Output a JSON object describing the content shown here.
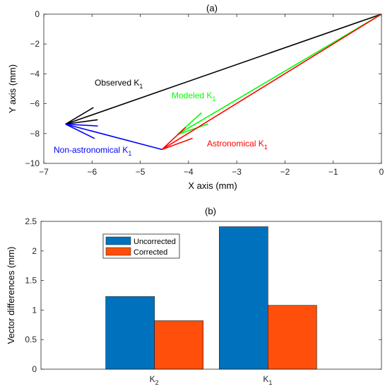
{
  "colors": {
    "black": "#000000",
    "blue": "#0000ff",
    "green": "#00ff00",
    "red": "#ff0000",
    "uncorrected": "#0072bd",
    "corrected": "#ff4f0a"
  },
  "chart_data": [
    {
      "type": "line",
      "title": "(a)",
      "xlabel": "X axis (mm)",
      "ylabel": "Y axis (mm)",
      "xlim": [
        -7,
        0
      ],
      "ylim": [
        -10,
        0
      ],
      "xticks": [
        -7,
        -6,
        -5,
        -4,
        -3,
        -2,
        -1,
        0
      ],
      "xtick_labels": [
        "−7",
        "−6",
        "−5",
        "−4",
        "−3",
        "−2",
        "−1",
        "0"
      ],
      "yticks": [
        0,
        -2,
        -4,
        -6,
        -8,
        -10
      ],
      "ytick_labels": [
        "0",
        "−2",
        "−4",
        "−6",
        "−8",
        "−10"
      ],
      "grid": false,
      "vectors": [
        {
          "base": "Observed K",
          "sub": "1",
          "color": "#000000",
          "from": [
            0,
            0
          ],
          "to": [
            -6.55,
            -7.37
          ]
        },
        {
          "base": "Modeled K",
          "sub": "1",
          "color": "#00ff00",
          "from": [
            0,
            0
          ],
          "to": [
            -4.23,
            -8.07
          ]
        },
        {
          "base": "Astronomical K",
          "sub": "1",
          "color": "#ff0000",
          "from": [
            0,
            0
          ],
          "to": [
            -4.55,
            -9.07
          ]
        },
        {
          "base": "Non-astronomical K",
          "sub": "1",
          "color": "#0000ff",
          "from": [
            -4.55,
            -9.07
          ],
          "to": [
            -6.55,
            -7.37
          ]
        }
      ]
    },
    {
      "type": "bar",
      "title": "(b)",
      "xlabel": "",
      "ylabel": "Vector differences (mm)",
      "categories": [
        {
          "base": "K",
          "sub": "2"
        },
        {
          "base": "K",
          "sub": "1"
        }
      ],
      "ylim": [
        0,
        2.5
      ],
      "yticks": [
        0,
        0.5,
        1,
        1.5,
        2,
        2.5
      ],
      "ytick_labels": [
        "0",
        "0.5",
        "1",
        "1.5",
        "2",
        "2.5"
      ],
      "grid": false,
      "legend_position": "upper-left",
      "series": [
        {
          "name": "Uncorrected",
          "color": "#0072bd",
          "values": [
            1.23,
            2.41
          ]
        },
        {
          "name": "Corrected",
          "color": "#ff4f0a",
          "values": [
            0.82,
            1.08
          ]
        }
      ]
    }
  ]
}
